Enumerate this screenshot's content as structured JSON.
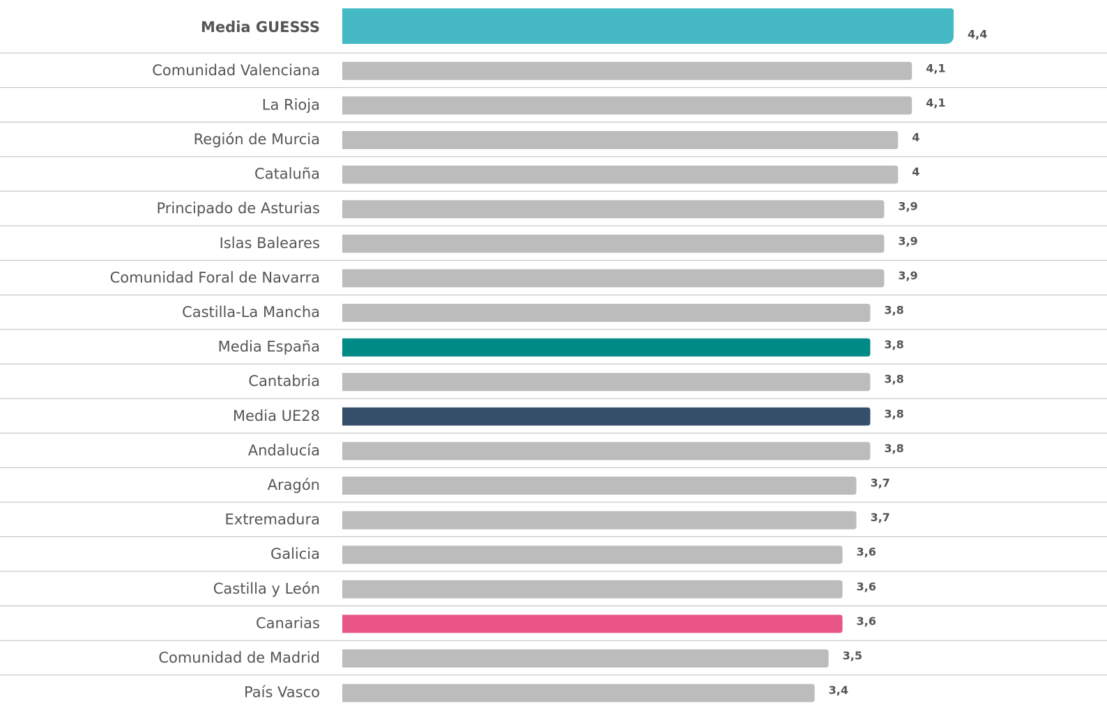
{
  "chart_data": {
    "type": "barh",
    "categories": [
      "Media GUESSS",
      "Comunidad Valenciana",
      "La Rioja",
      "Región de Murcia",
      "Cataluña",
      "Principado de Asturias",
      "Islas Baleares",
      "Comunidad Foral de Navarra",
      "Castilla-La Mancha",
      "Media España",
      "Cantabria",
      "Media UE28",
      "Andalucía",
      "Aragón",
      "Extremadura",
      "Galicia",
      "Castilla y León",
      "Canarias",
      "Comunidad de Madrid",
      "País Vasco"
    ],
    "values": [
      4.4,
      4.1,
      4.1,
      4,
      4,
      3.9,
      3.9,
      3.9,
      3.8,
      3.8,
      3.8,
      3.8,
      3.8,
      3.7,
      3.7,
      3.6,
      3.6,
      3.6,
      3.5,
      3.4
    ],
    "value_labels": [
      "4,4",
      "4,1",
      "4,1",
      "4",
      "4",
      "3,9",
      "3,9",
      "3,9",
      "3,8",
      "3,8",
      "3,8",
      "3,8",
      "3,8",
      "3,7",
      "3,7",
      "3,6",
      "3,6",
      "3,6",
      "3,5",
      "3,4"
    ],
    "colors": [
      "#45bac4",
      "#bcbcbc",
      "#bcbcbc",
      "#bcbcbc",
      "#bcbcbc",
      "#bcbcbc",
      "#bcbcbc",
      "#bcbcbc",
      "#bcbcbc",
      "#008a86",
      "#bcbcbc",
      "#354f6b",
      "#bcbcbc",
      "#bcbcbc",
      "#bcbcbc",
      "#bcbcbc",
      "#bcbcbc",
      "#e85586",
      "#bcbcbc",
      "#bcbcbc"
    ]
  }
}
